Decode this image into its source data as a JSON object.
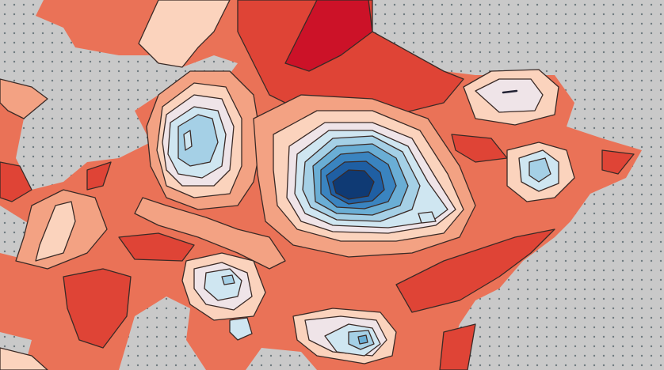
{
  "map": {
    "type": "filled-contour",
    "colors": {
      "no_data": "#c9c9c9",
      "no_data_dots": "#6f7b80",
      "dark_red": "#cc1228",
      "red": "#df4436",
      "orange_red": "#ea7257",
      "salmon": "#f3a283",
      "peach": "#fbd3bd",
      "near_white": "#efe4e8",
      "light_blue": "#cfe6f1",
      "sky_blue": "#a5d0e6",
      "mid_blue": "#6aaed5",
      "blue": "#3a84c0",
      "deep_blue": "#1f5fa3",
      "darkest_blue": "#0f3a74"
    }
  }
}
